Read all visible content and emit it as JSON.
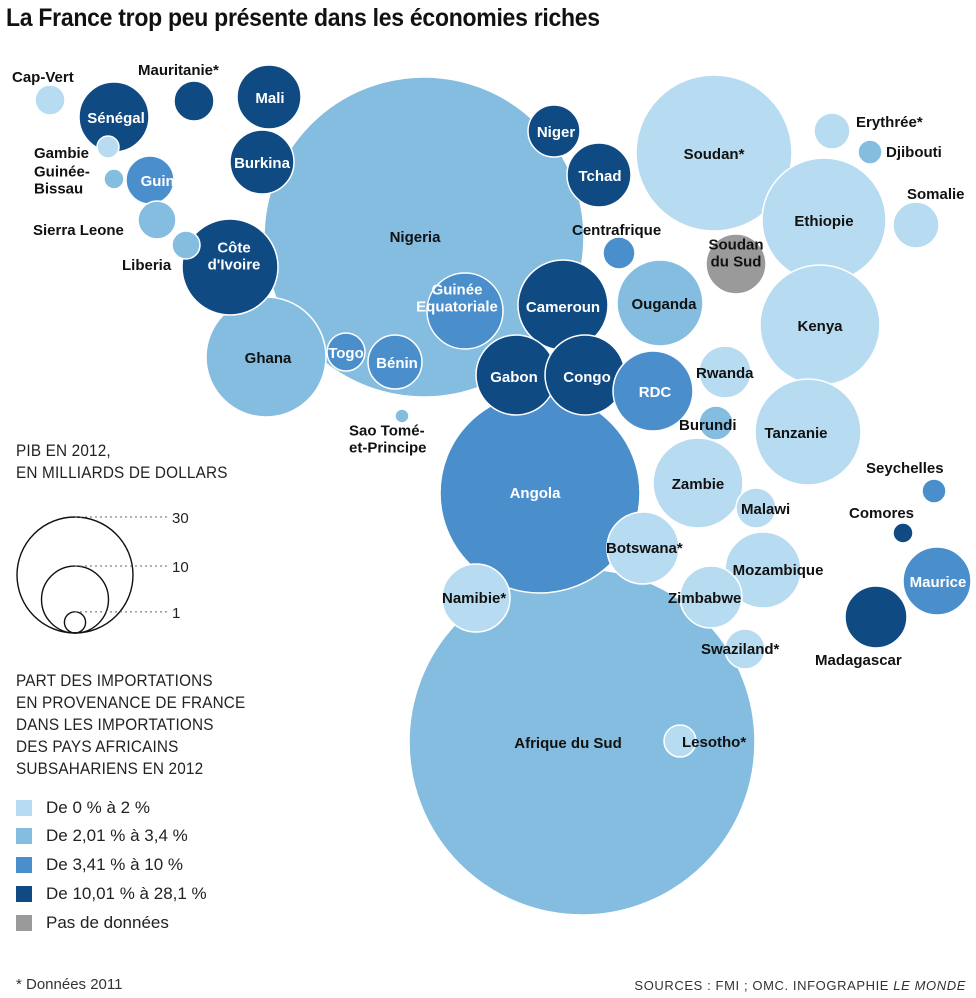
{
  "title": "La France trop peu présente dans les économies riches",
  "legend_size": {
    "title_lines": [
      "PIB EN 2012,",
      "EN MILLIARDS DE DOLLARS"
    ],
    "sizes": [
      {
        "label": "30",
        "value": 30
      },
      {
        "label": "10",
        "value": 10
      },
      {
        "label": "1",
        "value": 1
      }
    ]
  },
  "legend_color": {
    "title_lines": [
      "PART DES IMPORTATIONS",
      "EN PROVENANCE DE FRANCE",
      "DANS LES IMPORTATIONS",
      "DES PAYS AFRICAINS",
      "SUBSAHARIENS EN 2012"
    ],
    "classes": [
      {
        "label": "De 0 % à 2 %",
        "color": "#b7dbf0"
      },
      {
        "label": "De 2,01 % à 3,4 %",
        "color": "#84bde0"
      },
      {
        "label": "De 3,41 % à 10 %",
        "color": "#4a8fcb"
      },
      {
        "label": "De 10,01 % à 28,1 %",
        "color": "#0f4a83"
      },
      {
        "label": "Pas de données",
        "color": "#9a9a9a"
      }
    ]
  },
  "countries": [
    {
      "name": "Afrique du Sud",
      "class": 1
    },
    {
      "name": "Nigeria",
      "class": 1
    },
    {
      "name": "Angola",
      "class": 2
    },
    {
      "name": "Soudan*",
      "class": 0
    },
    {
      "name": "Kenya",
      "class": 0
    },
    {
      "name": "Ethiopie",
      "class": 0
    },
    {
      "name": "Ghana",
      "class": 1
    },
    {
      "name": "Tanzanie",
      "class": 0
    },
    {
      "name": "Côte d'Ivoire",
      "class": 3
    },
    {
      "name": "Cameroun",
      "class": 3
    },
    {
      "name": "Ouganda",
      "class": 1
    },
    {
      "name": "Gabon",
      "class": 3
    },
    {
      "name": "Congo",
      "class": 3
    },
    {
      "name": "RDC",
      "class": 2
    },
    {
      "name": "Zambie",
      "class": 0
    },
    {
      "name": "Sénégal",
      "class": 3
    },
    {
      "name": "Mali",
      "class": 3
    },
    {
      "name": "Burkina",
      "class": 3
    },
    {
      "name": "Tchad",
      "class": 3
    },
    {
      "name": "Niger",
      "class": 3
    },
    {
      "name": "Guinée Equatoriale",
      "class": 2
    },
    {
      "name": "Mozambique",
      "class": 0
    },
    {
      "name": "Botswana*",
      "class": 0
    },
    {
      "name": "Namibie*",
      "class": 0
    },
    {
      "name": "Madagascar",
      "class": 3
    },
    {
      "name": "Maurice",
      "class": 2
    },
    {
      "name": "Zimbabwe",
      "class": 0
    },
    {
      "name": "Soudan du Sud",
      "class": 4
    },
    {
      "name": "Bénin",
      "class": 2
    },
    {
      "name": "Guinée",
      "class": 2
    },
    {
      "name": "Mauritanie*",
      "class": 3
    },
    {
      "name": "Rwanda",
      "class": 0
    },
    {
      "name": "Malawi",
      "class": 0
    },
    {
      "name": "Togo",
      "class": 2
    },
    {
      "name": "Somalie",
      "class": 0
    },
    {
      "name": "Sierra Leone",
      "class": 1
    },
    {
      "name": "Swaziland*",
      "class": 0
    },
    {
      "name": "Erythrée*",
      "class": 0
    },
    {
      "name": "Burundi",
      "class": 1
    },
    {
      "name": "Centrafrique",
      "class": 2
    },
    {
      "name": "Lesotho*",
      "class": 0
    },
    {
      "name": "Cap-Vert",
      "class": 0
    },
    {
      "name": "Liberia",
      "class": 1
    },
    {
      "name": "Djibouti",
      "class": 1
    },
    {
      "name": "Seychelles",
      "class": 2
    },
    {
      "name": "Gambie",
      "class": 0
    },
    {
      "name": "Guinée-Bissau",
      "class": 1
    },
    {
      "name": "Comores",
      "class": 3
    },
    {
      "name": "Sao Tomé-et-Principe",
      "class": 1
    }
  ],
  "footnote": "* Données 2011",
  "sources": {
    "prefix": "SOURCES : FMI ; OMC. INFOGRAPHIE ",
    "brand": "LE MONDE"
  }
}
